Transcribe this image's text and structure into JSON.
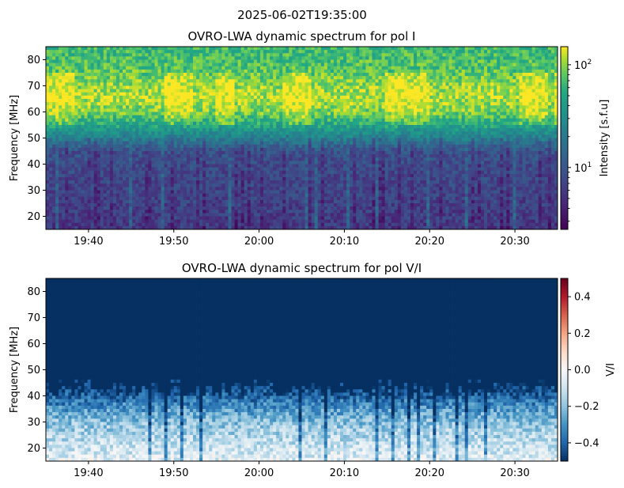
{
  "suptitle": "2025-06-02T19:35:00",
  "chart_data": [
    {
      "type": "heatmap",
      "title": "OVRO-LWA dynamic spectrum for pol I",
      "xlabel": "",
      "ylabel": "Frequency [MHz]",
      "x_ticks": [
        "19:40",
        "19:50",
        "20:00",
        "20:10",
        "20:20",
        "20:30"
      ],
      "x_range": [
        "19:35",
        "20:35"
      ],
      "y_ticks": [
        20,
        30,
        40,
        50,
        60,
        70,
        80
      ],
      "ylim": [
        15,
        85
      ],
      "colormap": "viridis",
      "colorbar": {
        "label": "Intensity [s.f.u]",
        "scale": "log",
        "range": [
          2.5,
          150
        ],
        "tick_labels": [
          {
            "base": "10",
            "exp": "1",
            "value": 10
          },
          {
            "base": "10",
            "exp": "2",
            "value": 100
          }
        ]
      },
      "profile": {
        "description_free": true,
        "freq_mhz": [
          15,
          20,
          30,
          40,
          45,
          50,
          55,
          60,
          65,
          70,
          75,
          80,
          85
        ],
        "log10_intensity": [
          0.75,
          0.8,
          0.85,
          0.9,
          0.95,
          1.35,
          1.7,
          1.95,
          2.05,
          2.0,
          1.9,
          1.85,
          1.8
        ]
      }
    },
    {
      "type": "heatmap",
      "title": "OVRO-LWA dynamic spectrum for pol V/I",
      "xlabel": "",
      "ylabel": "Frequency [MHz]",
      "x_ticks": [
        "19:40",
        "19:50",
        "20:00",
        "20:10",
        "20:20",
        "20:30"
      ],
      "x_range": [
        "19:35",
        "20:35"
      ],
      "y_ticks": [
        20,
        30,
        40,
        50,
        60,
        70,
        80
      ],
      "ylim": [
        15,
        85
      ],
      "colormap": "RdBu_r",
      "colorbar": {
        "label": "V/I",
        "scale": "linear",
        "range": [
          -0.5,
          0.5
        ],
        "ticks": [
          0.4,
          0.2,
          0.0,
          -0.2,
          -0.4
        ],
        "tick_labels": [
          "0.4",
          "0.2",
          "0.0",
          "−0.2",
          "−0.4"
        ]
      },
      "profile": {
        "freq_mhz": [
          15,
          20,
          25,
          30,
          35,
          40,
          45,
          85
        ],
        "v_over_i": [
          -0.05,
          -0.1,
          -0.15,
          -0.2,
          -0.3,
          -0.4,
          -0.5,
          -0.5
        ]
      }
    }
  ]
}
